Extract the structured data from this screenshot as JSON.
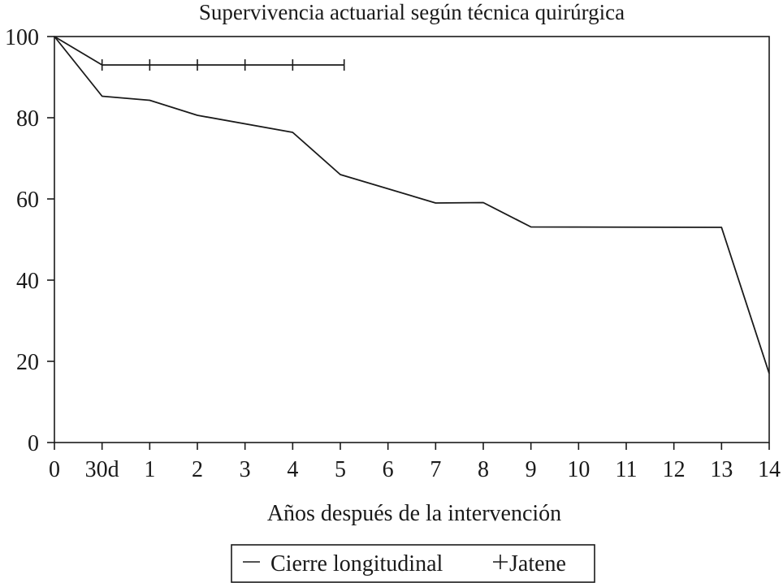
{
  "chart_data": {
    "type": "line",
    "title": "Supervivencia actuarial según técnica quirúrgica",
    "xlabel": "Años después de la intervención",
    "ylabel": "",
    "xlim": [
      0,
      14
    ],
    "ylim": [
      0,
      100
    ],
    "x_ticks": [
      {
        "value": 0,
        "label": "0"
      },
      {
        "value": 1,
        "label": "30d"
      },
      {
        "value": 2,
        "label": "1"
      },
      {
        "value": 3,
        "label": "2"
      },
      {
        "value": 4,
        "label": "3"
      },
      {
        "value": 5,
        "label": "4"
      },
      {
        "value": 6,
        "label": "5"
      },
      {
        "value": 7,
        "label": "6"
      },
      {
        "value": 8,
        "label": "7"
      },
      {
        "value": 9,
        "label": "8"
      },
      {
        "value": 10,
        "label": "9"
      },
      {
        "value": 11,
        "label": "10"
      },
      {
        "value": 12,
        "label": "11"
      },
      {
        "value": 13,
        "label": "12"
      },
      {
        "value": 14,
        "label": "13"
      },
      {
        "value": 15,
        "label": "14"
      }
    ],
    "y_ticks": [
      0,
      20,
      40,
      60,
      80,
      100
    ],
    "grid": false,
    "legend_position": "bottom",
    "series": [
      {
        "name": "Cierre longitudinal",
        "marker": "none",
        "x": [
          0,
          1,
          2,
          3,
          5,
          6,
          8,
          9,
          10,
          14,
          15
        ],
        "y": [
          100,
          85.3,
          84.3,
          80.6,
          76.4,
          66,
          59,
          59.1,
          53.1,
          53,
          17
        ]
      },
      {
        "name": "Jatene",
        "marker": "+",
        "x": [
          0,
          1,
          2,
          3,
          4,
          5,
          6.08
        ],
        "y": [
          100,
          93,
          93,
          93,
          93,
          93,
          93
        ]
      }
    ],
    "legend": {
      "entries": [
        {
          "symbol": "—",
          "label": "Cierre longitudinal"
        },
        {
          "symbol": "+",
          "label": "Jatene"
        }
      ]
    }
  }
}
